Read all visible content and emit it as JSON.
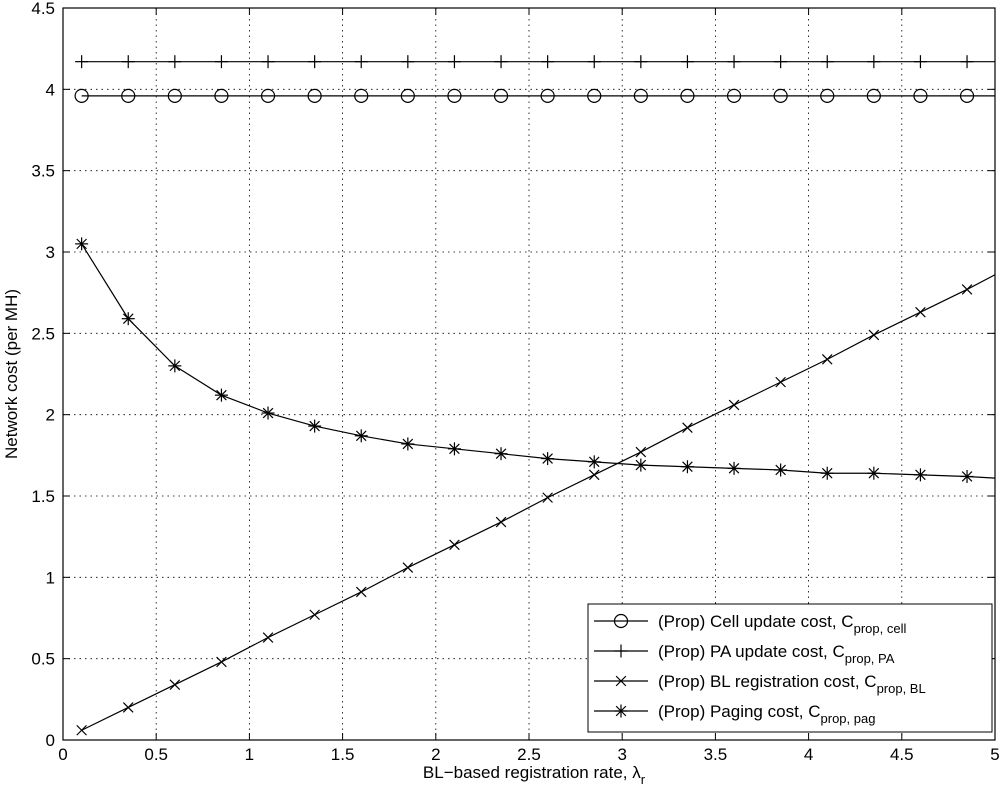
{
  "chart_data": {
    "type": "line",
    "title": "",
    "xlabel": "BL−based registration rate, ",
    "xlabel_symbol": "λ",
    "xlabel_subscript": "r",
    "ylabel": "Network cost (per MH)",
    "xlim": [
      0,
      5
    ],
    "ylim": [
      0,
      4.5
    ],
    "x_ticks": [
      0,
      0.5,
      1,
      1.5,
      2,
      2.5,
      3,
      3.5,
      4,
      4.5,
      5
    ],
    "x_tick_labels": [
      "0",
      "0.5",
      "1",
      "1.5",
      "2",
      "2.5",
      "3",
      "3.5",
      "4",
      "4.5",
      "5"
    ],
    "y_ticks": [
      0,
      0.5,
      1,
      1.5,
      2,
      2.5,
      3,
      3.5,
      4,
      4.5
    ],
    "y_tick_labels": [
      "0",
      "0.5",
      "1",
      "1.5",
      "2",
      "2.5",
      "3",
      "3.5",
      "4",
      "4.5"
    ],
    "grid": true,
    "legend_position": "bottom-right",
    "x": [
      0.1,
      0.35,
      0.6,
      0.85,
      1.1,
      1.35,
      1.6,
      1.85,
      2.1,
      2.35,
      2.6,
      2.85,
      3.1,
      3.35,
      3.6,
      3.85,
      4.1,
      4.35,
      4.6,
      4.85
    ],
    "series": [
      {
        "name": "(Prop) Cell update cost, C",
        "subscript": "prop, cell",
        "marker": "circle",
        "values": [
          3.96,
          3.96,
          3.96,
          3.96,
          3.96,
          3.96,
          3.96,
          3.96,
          3.96,
          3.96,
          3.96,
          3.96,
          3.96,
          3.96,
          3.96,
          3.96,
          3.96,
          3.96,
          3.96,
          3.96
        ],
        "line_x_range": [
          0.1,
          5
        ],
        "line_y_end": 3.96
      },
      {
        "name": "(Prop) PA update cost, C",
        "subscript": "prop, PA",
        "marker": "plus",
        "values": [
          4.17,
          4.17,
          4.17,
          4.17,
          4.17,
          4.17,
          4.17,
          4.17,
          4.17,
          4.17,
          4.17,
          4.17,
          4.17,
          4.17,
          4.17,
          4.17,
          4.17,
          4.17,
          4.17,
          4.17
        ],
        "line_x_range": [
          0.1,
          5
        ],
        "line_y_end": 4.17
      },
      {
        "name": "(Prop) BL registration cost, C",
        "subscript": "prop, BL",
        "marker": "x",
        "values": [
          0.06,
          0.2,
          0.34,
          0.48,
          0.63,
          0.77,
          0.91,
          1.06,
          1.2,
          1.34,
          1.49,
          1.63,
          1.77,
          1.92,
          2.06,
          2.2,
          2.34,
          2.49,
          2.63,
          2.77
        ],
        "line_x_range": [
          0.1,
          5
        ],
        "line_y_end": 2.86
      },
      {
        "name": "(Prop) Paging cost, C",
        "subscript": "prop, pag",
        "marker": "asterisk",
        "values": [
          3.05,
          2.59,
          2.3,
          2.12,
          2.01,
          1.93,
          1.87,
          1.82,
          1.79,
          1.76,
          1.73,
          1.71,
          1.69,
          1.68,
          1.67,
          1.66,
          1.64,
          1.64,
          1.63,
          1.62
        ],
        "line_x_range": [
          0.1,
          5
        ],
        "line_y_end": 1.61
      }
    ]
  }
}
